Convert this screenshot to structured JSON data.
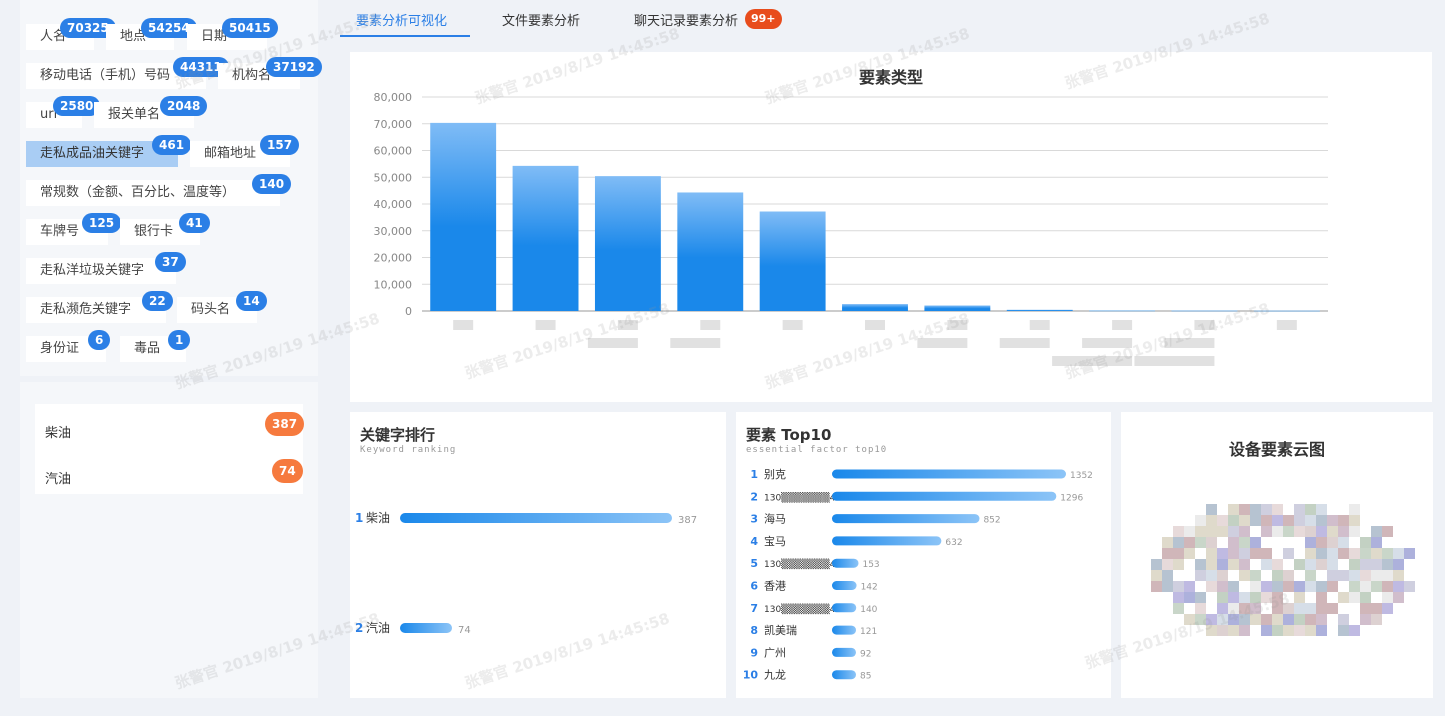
{
  "tags": [
    {
      "label": "人名",
      "count": "70325"
    },
    {
      "label": "地点",
      "count": "54254"
    },
    {
      "label": "日期",
      "count": "50415"
    },
    {
      "label": "移动电话（手机）号码",
      "count": "44311"
    },
    {
      "label": "机构名",
      "count": "37192"
    },
    {
      "label": "url",
      "count": "2580"
    },
    {
      "label": "报关单名",
      "count": "2048"
    },
    {
      "label": "走私成品油关键字",
      "count": "461"
    },
    {
      "label": "邮箱地址",
      "count": "157"
    },
    {
      "label": "常规数（金额、百分比、温度等）",
      "count": "140"
    },
    {
      "label": "车牌号",
      "count": "125"
    },
    {
      "label": "银行卡",
      "count": "41"
    },
    {
      "label": "走私洋垃圾关键字",
      "count": "37"
    },
    {
      "label": "走私濒危关键字",
      "count": "22"
    },
    {
      "label": "码头名",
      "count": "14"
    },
    {
      "label": "身份证",
      "count": "6"
    },
    {
      "label": "毒品",
      "count": "1"
    }
  ],
  "keywords": [
    {
      "label": "柴油",
      "count": "387"
    },
    {
      "label": "汽油",
      "count": "74"
    }
  ],
  "tabs": {
    "t1": "要素分析可视化",
    "t2": "文件要素分析",
    "t3": "聊天记录要素分析",
    "badge": "99+"
  },
  "colors": {
    "accent": "#2b7fe6",
    "badge_orange": "#f67a3e",
    "badge_red": "#e84c1c",
    "bar_top": "#7fbbf5",
    "bar_bottom": "#1a88ea"
  },
  "chart_data": {
    "type": "bar",
    "title": "要素类型",
    "categories": [
      "",
      "",
      "",
      "",
      "",
      "",
      "",
      "",
      "",
      "",
      ""
    ],
    "values": [
      70325,
      54254,
      50415,
      44311,
      37192,
      2580,
      2048,
      461,
      157,
      140,
      125
    ],
    "ylim": [
      0,
      80000
    ],
    "yticks": [
      "0",
      "10,000",
      "20,000",
      "30,000",
      "40,000",
      "50,000",
      "60,000",
      "70,000",
      "80,000"
    ],
    "grid": true
  },
  "rank": {
    "title": "关键字排行",
    "subtitle": "Keyword ranking",
    "items": [
      {
        "rank": "1",
        "label": "柴油",
        "value": 387
      },
      {
        "rank": "2",
        "label": "汽油",
        "value": 74
      }
    ]
  },
  "top10": {
    "title": "要素 Top10",
    "subtitle": "essential factor top10",
    "items": [
      {
        "rank": "1",
        "label": "别克",
        "value": 1352
      },
      {
        "rank": "2",
        "label": "130▒▒▒▒▒▒▒4",
        "value": 1296
      },
      {
        "rank": "3",
        "label": "海马",
        "value": 852
      },
      {
        "rank": "4",
        "label": "宝马",
        "value": 632
      },
      {
        "rank": "5",
        "label": "130▒▒▒▒▒▒▒4",
        "value": 153
      },
      {
        "rank": "6",
        "label": "香港",
        "value": 142
      },
      {
        "rank": "7",
        "label": "130▒▒▒▒▒▒▒4",
        "value": 140
      },
      {
        "rank": "8",
        "label": "凯美瑞",
        "value": 121
      },
      {
        "rank": "9",
        "label": "广州",
        "value": 92
      },
      {
        "rank": "10",
        "label": "九龙",
        "value": 85
      }
    ]
  },
  "cloud": {
    "title": "设备要素云图"
  },
  "watermark": "张警官 2019/8/19 14:45:58"
}
